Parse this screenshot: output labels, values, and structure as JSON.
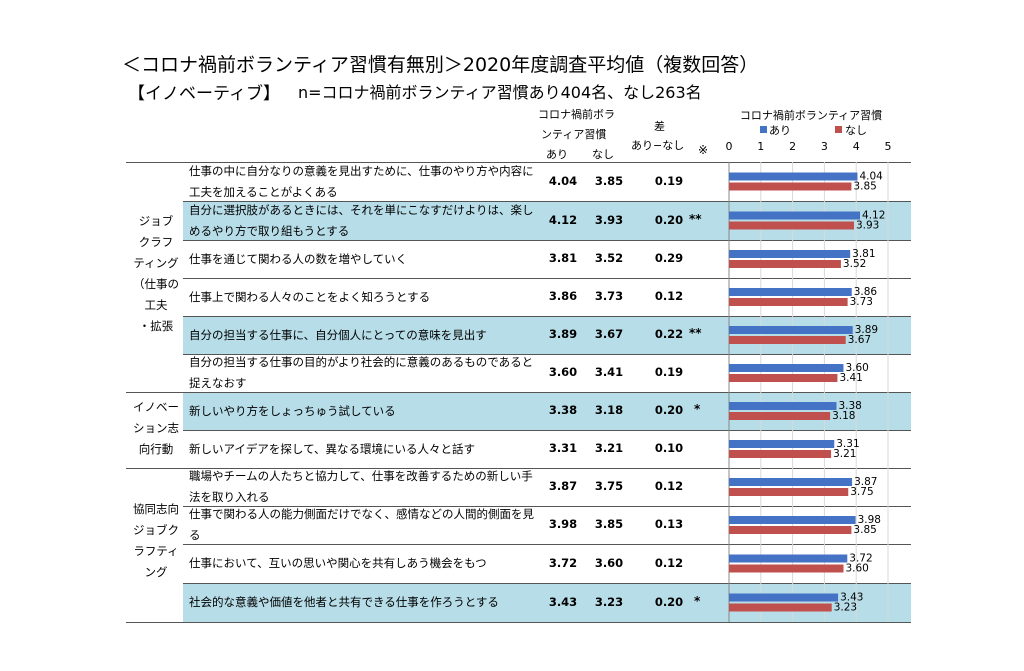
{
  "title": "＜コロナ禍前ボランティア習慣有無別＞2020年度調査平均値（複数回答）",
  "subtitle_label": "【イノベーティブ】",
  "subtitle_n": "n=コロナ禍前ボランティア習慣あり404名、なし263名",
  "table_header": {
    "group_line1": "コロナ禍前ボラ",
    "group_line2": "ンティア習慣",
    "col_ari": "あり",
    "col_nashi": "なし",
    "diff_line1": "差",
    "diff_line2": "あり−なし",
    "mark_note": "※"
  },
  "categories": [
    {
      "lines": [
        "ジョブ",
        "クラフ",
        "ティング",
        "（仕事の",
        "工夫",
        "・拡張"
      ]
    },
    {
      "lines": [
        "イノベー",
        "ション志",
        "向行動"
      ]
    },
    {
      "lines": [
        "協同志向",
        "ジョブク",
        "ラフティ",
        "ング"
      ]
    }
  ],
  "rows": [
    {
      "label": "仕事の中に自分なりの意義を見出すために、仕事のやり方や内容に工夫を加えることがよくある",
      "ari": "4.04",
      "nashi": "3.85",
      "diff": "0.19",
      "mark": ""
    },
    {
      "label": "自分に選択肢があるときには、それを単にこなすだけよりは、楽しめるやり方で取り組もうとする",
      "ari": "4.12",
      "nashi": "3.93",
      "diff": "0.20",
      "mark": "**"
    },
    {
      "label": "仕事を通じて関わる人の数を増やしていく",
      "ari": "3.81",
      "nashi": "3.52",
      "diff": "0.29",
      "mark": ""
    },
    {
      "label": "仕事上で関わる人々のことをよく知ろうとする",
      "ari": "3.86",
      "nashi": "3.73",
      "diff": "0.12",
      "mark": ""
    },
    {
      "label": "自分の担当する仕事に、自分個人にとっての意味を見出す",
      "ari": "3.89",
      "nashi": "3.67",
      "diff": "0.22",
      "mark": "**"
    },
    {
      "label": "自分の担当する仕事の目的がより社会的に意義のあるものであると捉えなおす",
      "ari": "3.60",
      "nashi": "3.41",
      "diff": "0.19",
      "mark": ""
    },
    {
      "label": "新しいやり方をしょっちゅう試している",
      "ari": "3.38",
      "nashi": "3.18",
      "diff": "0.20",
      "mark": "*"
    },
    {
      "label": "新しいアイデアを探して、異なる環境にいる人々と話す",
      "ari": "3.31",
      "nashi": "3.21",
      "diff": "0.10",
      "mark": ""
    },
    {
      "label": "職場やチームの人たちと協力して、仕事を改善するための新しい手法を取り入れる",
      "ari": "3.87",
      "nashi": "3.75",
      "diff": "0.12",
      "mark": ""
    },
    {
      "label": "仕事で関わる人の能力側面だけでなく、感情などの人間的側面を見る",
      "ari": "3.98",
      "nashi": "3.85",
      "diff": "0.13",
      "mark": ""
    },
    {
      "label": "仕事において、互いの思いや関心を共有しあう機会をもつ",
      "ari": "3.72",
      "nashi": "3.60",
      "diff": "0.12",
      "mark": ""
    },
    {
      "label": "社会的な意義や価値を他者と共有できる仕事を作ろうとする",
      "ari": "3.43",
      "nashi": "3.23",
      "diff": "0.20",
      "mark": "*"
    }
  ],
  "chart_data": {
    "type": "bar",
    "orientation": "horizontal",
    "title": "コロナ禍前ボランティア習慣",
    "xlim": [
      0,
      5
    ],
    "xticks": [
      "0",
      "1",
      "2",
      "3",
      "4",
      "5"
    ],
    "legend_position": "top",
    "series": [
      {
        "name": "あり",
        "color": "#4472c4",
        "values": [
          4.04,
          4.12,
          3.81,
          3.86,
          3.89,
          3.6,
          3.38,
          3.31,
          3.87,
          3.98,
          3.72,
          3.43
        ],
        "labels": [
          "4.04",
          "4.12",
          "3.81",
          "3.86",
          "3.89",
          "3.60",
          "3.38",
          "3.31",
          "3.87",
          "3.98",
          "3.72",
          "3.43"
        ]
      },
      {
        "name": "なし",
        "color": "#c0504d",
        "values": [
          3.85,
          3.93,
          3.52,
          3.73,
          3.67,
          3.41,
          3.18,
          3.21,
          3.75,
          3.85,
          3.6,
          3.23
        ],
        "labels": [
          "3.85",
          "3.93",
          "3.52",
          "3.73",
          "3.67",
          "3.41",
          "3.18",
          "3.21",
          "3.75",
          "3.85",
          "3.60",
          "3.23"
        ]
      }
    ]
  }
}
